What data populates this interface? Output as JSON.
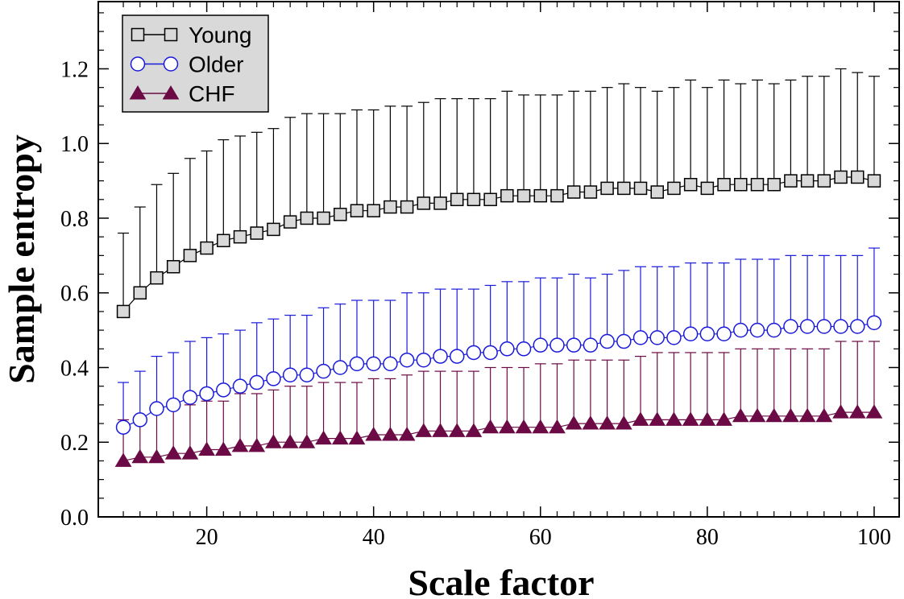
{
  "chart_data": {
    "type": "line",
    "xlabel": "Scale factor",
    "ylabel": "Sample entropy",
    "xlim": [
      7,
      103
    ],
    "ylim": [
      0.0,
      1.38
    ],
    "xticks": [
      20,
      40,
      60,
      80,
      100
    ],
    "xtick_labels": [
      "20",
      "40",
      "60",
      "80",
      "100"
    ],
    "yticks": [
      0.0,
      0.2,
      0.4,
      0.6,
      0.8,
      1.0,
      1.2
    ],
    "ytick_labels": [
      "0.0",
      "0.2",
      "0.4",
      "0.6",
      "0.8",
      "1.0",
      "1.2"
    ],
    "grid": false,
    "legend_position": "top-left",
    "x": [
      10,
      12,
      14,
      16,
      18,
      20,
      22,
      24,
      26,
      28,
      30,
      32,
      34,
      36,
      38,
      40,
      42,
      44,
      46,
      48,
      50,
      52,
      54,
      56,
      58,
      60,
      62,
      64,
      66,
      68,
      70,
      72,
      74,
      76,
      78,
      80,
      82,
      84,
      86,
      88,
      90,
      92,
      94,
      96,
      98,
      100
    ],
    "series": [
      {
        "name": "Young",
        "marker": "square",
        "color": "#000000",
        "fill": "#d9d9d9",
        "values": [
          0.55,
          0.6,
          0.64,
          0.67,
          0.7,
          0.72,
          0.74,
          0.75,
          0.76,
          0.77,
          0.79,
          0.8,
          0.8,
          0.81,
          0.82,
          0.82,
          0.83,
          0.83,
          0.84,
          0.84,
          0.85,
          0.85,
          0.85,
          0.86,
          0.86,
          0.86,
          0.86,
          0.87,
          0.87,
          0.88,
          0.88,
          0.88,
          0.87,
          0.88,
          0.89,
          0.88,
          0.89,
          0.89,
          0.89,
          0.89,
          0.9,
          0.9,
          0.9,
          0.91,
          0.91,
          0.9
        ],
        "error_upper": [
          0.76,
          0.83,
          0.89,
          0.92,
          0.96,
          0.98,
          1.01,
          1.02,
          1.03,
          1.04,
          1.07,
          1.08,
          1.08,
          1.08,
          1.09,
          1.09,
          1.1,
          1.1,
          1.11,
          1.12,
          1.12,
          1.12,
          1.12,
          1.14,
          1.13,
          1.13,
          1.13,
          1.14,
          1.14,
          1.15,
          1.16,
          1.15,
          1.14,
          1.15,
          1.17,
          1.15,
          1.17,
          1.16,
          1.17,
          1.16,
          1.17,
          1.18,
          1.18,
          1.2,
          1.19,
          1.18
        ]
      },
      {
        "name": "Older",
        "marker": "circle",
        "color": "#1a1adb",
        "fill": "#ffffff",
        "values": [
          0.24,
          0.26,
          0.29,
          0.3,
          0.32,
          0.33,
          0.34,
          0.35,
          0.36,
          0.37,
          0.38,
          0.38,
          0.39,
          0.4,
          0.41,
          0.41,
          0.41,
          0.42,
          0.42,
          0.43,
          0.43,
          0.44,
          0.44,
          0.45,
          0.45,
          0.46,
          0.46,
          0.46,
          0.46,
          0.47,
          0.47,
          0.48,
          0.48,
          0.48,
          0.49,
          0.49,
          0.49,
          0.5,
          0.5,
          0.5,
          0.51,
          0.51,
          0.51,
          0.51,
          0.51,
          0.52
        ],
        "error_upper": [
          0.36,
          0.39,
          0.43,
          0.44,
          0.47,
          0.48,
          0.49,
          0.5,
          0.52,
          0.53,
          0.54,
          0.54,
          0.56,
          0.57,
          0.58,
          0.58,
          0.58,
          0.6,
          0.6,
          0.61,
          0.61,
          0.61,
          0.62,
          0.63,
          0.63,
          0.64,
          0.64,
          0.65,
          0.64,
          0.65,
          0.66,
          0.67,
          0.67,
          0.67,
          0.68,
          0.68,
          0.68,
          0.69,
          0.69,
          0.69,
          0.7,
          0.7,
          0.7,
          0.7,
          0.7,
          0.72
        ]
      },
      {
        "name": "CHF",
        "marker": "triangle",
        "color": "#6b0a45",
        "fill": "#6b0a45",
        "values": [
          0.15,
          0.16,
          0.16,
          0.17,
          0.17,
          0.18,
          0.18,
          0.19,
          0.19,
          0.2,
          0.2,
          0.2,
          0.21,
          0.21,
          0.21,
          0.22,
          0.22,
          0.22,
          0.23,
          0.23,
          0.23,
          0.23,
          0.24,
          0.24,
          0.24,
          0.24,
          0.24,
          0.25,
          0.25,
          0.25,
          0.25,
          0.26,
          0.26,
          0.26,
          0.26,
          0.26,
          0.26,
          0.27,
          0.27,
          0.27,
          0.27,
          0.27,
          0.27,
          0.28,
          0.28,
          0.28
        ],
        "error_upper": [
          0.26,
          0.27,
          0.28,
          0.3,
          0.3,
          0.31,
          0.31,
          0.33,
          0.33,
          0.34,
          0.35,
          0.35,
          0.36,
          0.36,
          0.36,
          0.37,
          0.37,
          0.38,
          0.39,
          0.39,
          0.39,
          0.39,
          0.4,
          0.4,
          0.4,
          0.41,
          0.41,
          0.42,
          0.42,
          0.42,
          0.42,
          0.43,
          0.44,
          0.44,
          0.44,
          0.44,
          0.44,
          0.45,
          0.45,
          0.45,
          0.45,
          0.45,
          0.45,
          0.47,
          0.47,
          0.47
        ]
      }
    ]
  }
}
